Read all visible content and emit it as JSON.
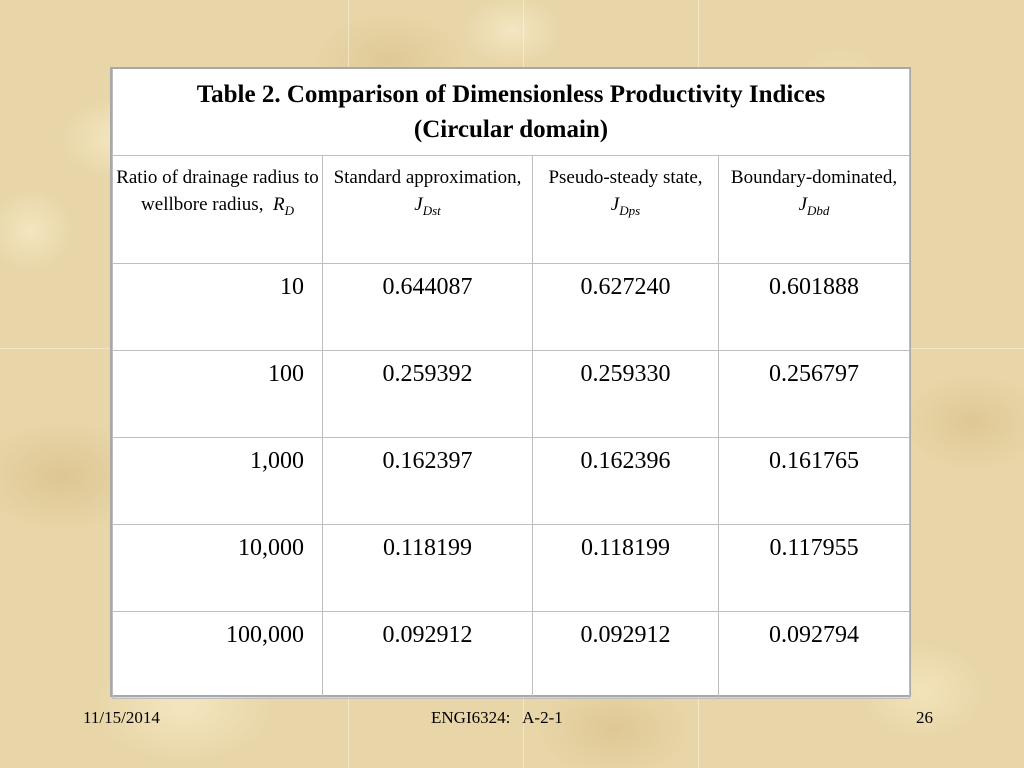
{
  "table": {
    "title_line1": "Table 2. Comparison of Dimensionless Productivity Indices",
    "title_line2": "(Circular domain)",
    "headers": [
      {
        "text": "Ratio of drainage radius to wellbore radius,",
        "symbol": "R",
        "subscript": "D"
      },
      {
        "text": "Standard approximation,",
        "symbol": "J",
        "subscript": "Dst"
      },
      {
        "text": "Pseudo-steady state,",
        "symbol": "J",
        "subscript": "Dps"
      },
      {
        "text": "Boundary-dominated,",
        "symbol": "J",
        "subscript": "Dbd"
      }
    ],
    "rows": [
      {
        "rd": "10",
        "dst": "0.644087",
        "dps": "0.627240",
        "dbd": "0.601888"
      },
      {
        "rd": "100",
        "dst": "0.259392",
        "dps": "0.259330",
        "dbd": "0.256797"
      },
      {
        "rd": "1,000",
        "dst": "0.162397",
        "dps": "0.162396",
        "dbd": "0.161765"
      },
      {
        "rd": "10,000",
        "dst": "0.118199",
        "dps": "0.118199",
        "dbd": "0.117955"
      },
      {
        "rd": "100,000",
        "dst": "0.092912",
        "dps": "0.092912",
        "dbd": "0.092794"
      }
    ]
  },
  "footer": {
    "date": "11/15/2014",
    "course": "ENGI6324:   A-2-1",
    "page": "26"
  },
  "colors": {
    "background": "#e8d6a8",
    "table_background": "#ffffff",
    "grid": "#bdbdbd"
  }
}
